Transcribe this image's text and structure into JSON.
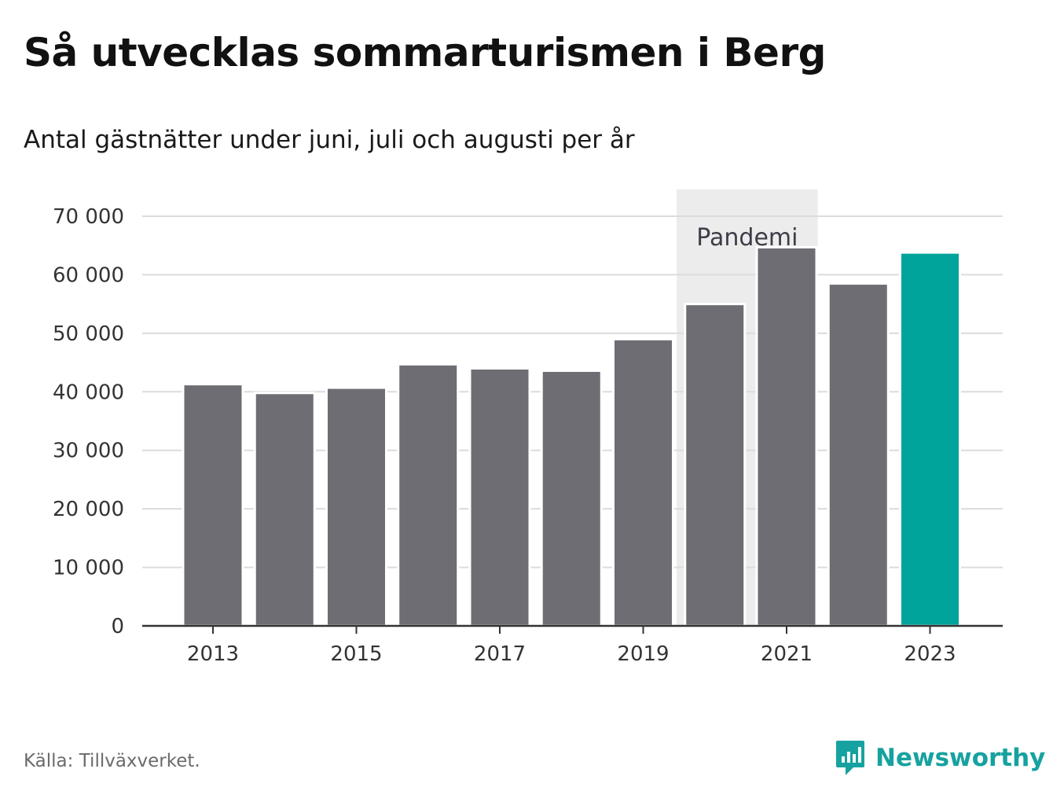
{
  "header": {
    "title": "Så utvecklas sommarturismen i Berg",
    "subtitle": "Antal gästnätter under juni, juli och augusti per år"
  },
  "footer": {
    "source": "Källa: Tillväxverket.",
    "brand": "Newsworthy",
    "brand_icon": "chart-bubble-icon"
  },
  "colors": {
    "bar": "#6e6d73",
    "highlight": "#00a49a",
    "band": "#ececec",
    "grid": "#dcdcdc",
    "brand": "#16a2a0"
  },
  "chart_data": {
    "type": "bar",
    "title": "Så utvecklas sommarturismen i Berg",
    "subtitle": "Antal gästnätter under juni, juli och augusti per år",
    "categories": [
      "2013",
      "2014",
      "2015",
      "2016",
      "2017",
      "2018",
      "2019",
      "2020",
      "2021",
      "2022",
      "2023"
    ],
    "values": [
      41300,
      39800,
      40700,
      44700,
      44000,
      43600,
      49000,
      55000,
      64700,
      58500,
      63800
    ],
    "highlight_category": "2023",
    "x_tick_labels": [
      "2013",
      "2015",
      "2017",
      "2019",
      "2021",
      "2023"
    ],
    "y_ticks": [
      0,
      10000,
      20000,
      30000,
      40000,
      50000,
      60000,
      70000
    ],
    "y_tick_labels": [
      "0",
      "10 000",
      "20 000",
      "30 000",
      "40 000",
      "50 000",
      "60 000",
      "70 000"
    ],
    "ylim": [
      0,
      70000
    ],
    "grid": true,
    "annotation": {
      "label": "Pandemi",
      "from": "2020",
      "to": "2021"
    }
  }
}
